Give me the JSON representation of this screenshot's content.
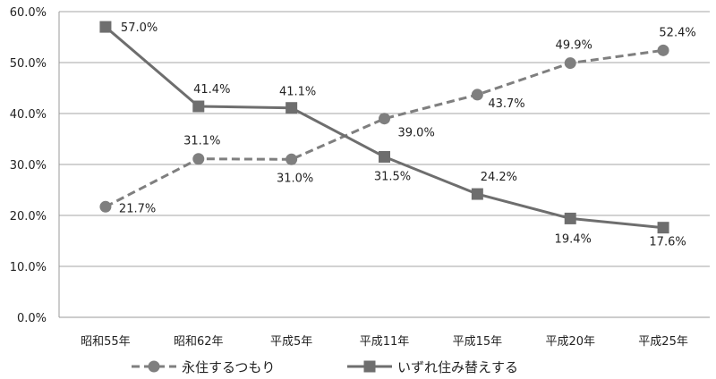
{
  "chart_data": {
    "type": "line",
    "categories": [
      "昭和55年",
      "昭和62年",
      "平成5年",
      "平成11年",
      "平成15年",
      "平成20年",
      "平成25年"
    ],
    "ylim": [
      0,
      60
    ],
    "ytick_values": [
      0,
      10,
      20,
      30,
      40,
      50,
      60
    ],
    "ytick_labels": [
      "0.0%",
      "10.0%",
      "20.0%",
      "30.0%",
      "40.0%",
      "50.0%",
      "60.0%"
    ],
    "grid": true,
    "legend_position": "bottom",
    "series": [
      {
        "name": "永住するつもり",
        "values": [
          21.7,
          31.1,
          31.0,
          39.0,
          43.7,
          49.9,
          52.4
        ],
        "labels": [
          "21.7%",
          "31.1%",
          "31.0%",
          "39.0%",
          "43.7%",
          "49.9%",
          "52.4%"
        ],
        "line_style": "dashed",
        "marker": "circle",
        "color": "#7f7f7f"
      },
      {
        "name": "いずれ住み替えする",
        "values": [
          57.0,
          41.4,
          41.1,
          31.5,
          24.2,
          19.4,
          17.6
        ],
        "labels": [
          "57.0%",
          "41.4%",
          "41.1%",
          "31.5%",
          "24.2%",
          "19.4%",
          "17.6%"
        ],
        "line_style": "solid",
        "marker": "square",
        "color": "#6e6e6e"
      }
    ]
  }
}
